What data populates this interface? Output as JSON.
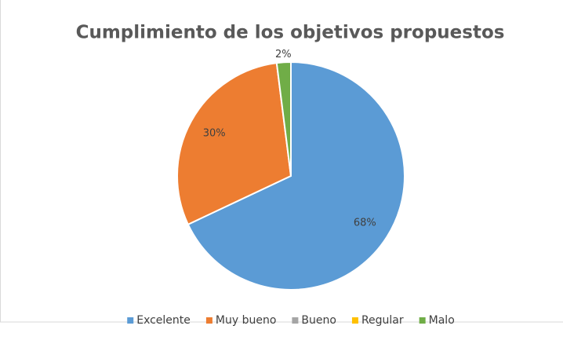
{
  "chart_data": {
    "type": "pie",
    "title": "Cumplimiento de los objetivos propuestos",
    "categories": [
      "Excelente",
      "Muy bueno",
      "Bueno",
      "Regular",
      "Malo"
    ],
    "values": [
      68,
      30,
      0,
      0,
      2
    ],
    "value_labels": [
      "68%",
      "30%",
      null,
      null,
      "2%"
    ],
    "colors": [
      "#5b9bd5",
      "#ed7d31",
      "#a5a5a5",
      "#ffc000",
      "#70ad47"
    ],
    "legend": "bottom"
  }
}
